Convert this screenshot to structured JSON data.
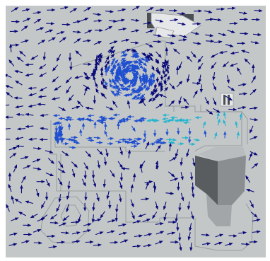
{
  "scene": {
    "background_color": "#c3c7c8",
    "outline_color": "#8c9294",
    "machine_body_color": "#c9cdce",
    "vector_colors": {
      "low_velocity": "#0a0a78",
      "mid_velocity": "#1f4fd0",
      "high_velocity": "#25b5cf"
    },
    "hopper_colors": {
      "left_face": "#5a5d60",
      "right_face": "#8a8e90",
      "top_face": "#b8bcbe",
      "lower_face": "#a2a6a8"
    },
    "nozzle_colors": {
      "body": "#e6e7e8",
      "dark": "#4b4e52"
    },
    "icons": [
      "flow-vector-arrow",
      "hopper-shape",
      "nozzle-shape",
      "vent-shape"
    ]
  }
}
